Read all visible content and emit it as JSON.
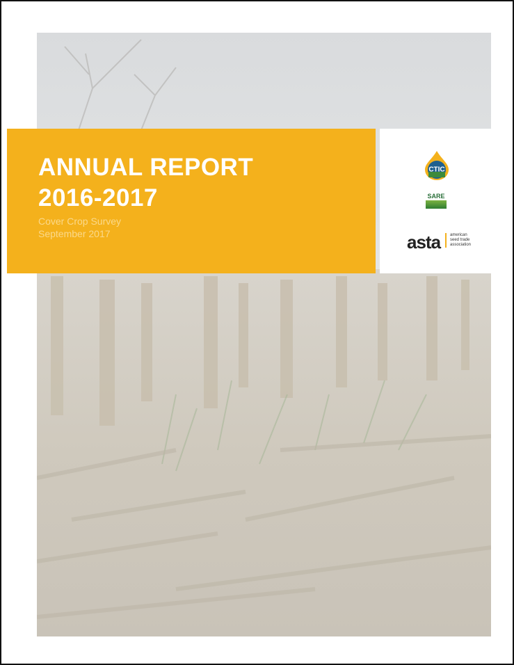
{
  "cover": {
    "title": "ANNUAL REPORT",
    "years": "2016-2017",
    "subtitle": "Cover Crop Survey",
    "date": "September 2017"
  },
  "logos": {
    "ctic": "CTIC",
    "sare": "SARE",
    "asta": "asta",
    "asta_tagline": [
      "american",
      "seed trade",
      "association"
    ]
  }
}
